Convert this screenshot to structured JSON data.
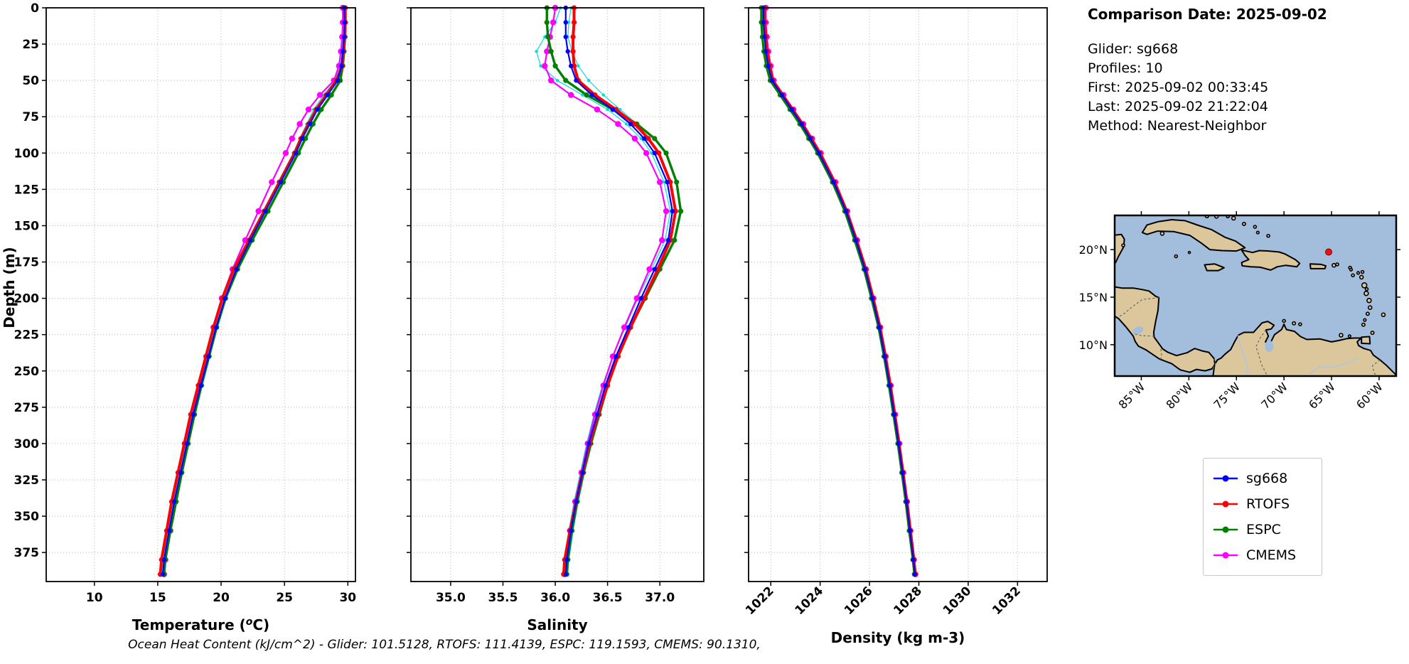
{
  "info_panel": {
    "title": "Comparison Date: 2025-09-02",
    "lines": [
      "Glider: sg668",
      "Profiles: 10",
      "First: 2025-09-02 00:33:45",
      "Last: 2025-09-02 21:22:04",
      "Method: Nearest-Neighbor"
    ]
  },
  "footer": "Ocean Heat Content (kJ/cm^2) - Glider: 101.5128,  RTOFS: 111.4139,  ESPC: 119.1593,  CMEMS: 90.1310,",
  "legend": {
    "items": [
      {
        "label": "sg668",
        "color": "#0000ff"
      },
      {
        "label": "RTOFS",
        "color": "#ff0000"
      },
      {
        "label": "ESPC",
        "color": "#008000"
      },
      {
        "label": "CMEMS",
        "color": "#ff00ff"
      }
    ]
  },
  "axis_labels": {
    "depth": "Depth (m)",
    "salinity": "Salinity",
    "density": "Density (kg m-3)"
  },
  "map": {
    "extent": {
      "lon_min": -87.8,
      "lon_max": -58.2,
      "lat_min": 6.7,
      "lat_max": 23.6
    },
    "xticks": [
      -85,
      -80,
      -75,
      -70,
      -65,
      -60
    ],
    "xtick_labels": [
      "85°W",
      "80°W",
      "75°W",
      "70°W",
      "65°W",
      "60°W"
    ],
    "yticks": [
      20,
      15,
      10
    ],
    "ytick_labels": [
      "20°N",
      "15°N",
      "10°N"
    ],
    "ocean_color": "#a3bddd",
    "land_color": "#dcc69b",
    "marker": {
      "lon": -65.3,
      "lat": 19.75,
      "color": "#ee1111"
    }
  },
  "chart_data": [
    {
      "id": "temperature",
      "type": "line",
      "xlabel": {
        "prefix": "Temperature (",
        "sup": "o",
        "suffix": "C)"
      },
      "ylabel": "Depth (m)",
      "xlim": [
        6.2,
        30.6
      ],
      "ylim": [
        0,
        395
      ],
      "xticks": [
        10,
        15,
        20,
        25,
        30
      ],
      "xtick_labels": [
        "10",
        "15",
        "20",
        "25",
        "30"
      ],
      "xtick_rotation": 0,
      "yticks": [
        0,
        25,
        50,
        75,
        100,
        125,
        150,
        175,
        200,
        225,
        250,
        275,
        300,
        325,
        350,
        375
      ],
      "ytick_labels": [
        "0",
        "25",
        "50",
        "75",
        "100",
        "125",
        "150",
        "175",
        "200",
        "225",
        "250",
        "275",
        "300",
        "325",
        "350",
        "375"
      ],
      "show_ytick_labels": true,
      "depths": [
        0,
        10,
        20,
        30,
        40,
        50,
        60,
        70,
        80,
        90,
        100,
        120,
        140,
        160,
        180,
        200,
        220,
        240,
        260,
        280,
        300,
        320,
        340,
        360,
        380,
        390
      ],
      "series": [
        {
          "name": "glider-profile-1",
          "color": "#00dede",
          "lw": 1.2,
          "ms": 2.2,
          "values": [
            29.65,
            29.7,
            29.65,
            29.55,
            29.4,
            29.0,
            28.1,
            27.3,
            26.75,
            26.2,
            25.7,
            24.5,
            23.3,
            22.1,
            21.05,
            20.15,
            19.5,
            18.9,
            18.3,
            17.7,
            17.2,
            16.7,
            16.2,
            15.8,
            15.45,
            15.35
          ]
        },
        {
          "name": "glider-profile-2",
          "color": "#00dede",
          "lw": 1.2,
          "ms": 2.2,
          "values": [
            29.75,
            29.8,
            29.75,
            29.68,
            29.55,
            29.35,
            28.65,
            27.85,
            27.2,
            26.6,
            26.05,
            24.85,
            23.65,
            22.45,
            21.35,
            20.4,
            19.7,
            19.1,
            18.5,
            17.95,
            17.45,
            16.95,
            16.5,
            16.05,
            15.6,
            15.5
          ]
        },
        {
          "name": "CMEMS",
          "color": "#ff00ff",
          "lw": 2.2,
          "ms": 4.2,
          "values": [
            29.6,
            29.6,
            29.55,
            29.45,
            29.3,
            28.9,
            27.8,
            26.9,
            26.2,
            25.6,
            25.1,
            24.0,
            22.95,
            21.9,
            20.9,
            20.05,
            19.4,
            18.85,
            18.3,
            17.8,
            17.3,
            16.85,
            16.4,
            16.0,
            15.6,
            15.5
          ]
        },
        {
          "name": "ESPC",
          "color": "#008000",
          "lw": 3.4,
          "ms": 3.6,
          "values": [
            29.75,
            29.8,
            29.78,
            29.7,
            29.6,
            29.4,
            28.7,
            27.9,
            27.25,
            26.65,
            26.1,
            24.9,
            23.7,
            22.45,
            21.3,
            20.35,
            19.65,
            19.05,
            18.45,
            17.9,
            17.4,
            16.9,
            16.45,
            16.0,
            15.6,
            15.5
          ]
        },
        {
          "name": "RTOFS",
          "color": "#ff0000",
          "lw": 4.0,
          "ms": 3.6,
          "values": [
            29.8,
            29.8,
            29.75,
            29.65,
            29.55,
            29.1,
            28.3,
            27.5,
            26.9,
            26.3,
            25.8,
            24.6,
            23.4,
            22.2,
            21.0,
            20.1,
            19.4,
            18.8,
            18.2,
            17.6,
            17.1,
            16.6,
            16.1,
            15.7,
            15.3,
            15.2
          ]
        },
        {
          "name": "sg668",
          "color": "#0000ff",
          "lw": 2.2,
          "ms": 3.2,
          "values": [
            29.7,
            29.75,
            29.7,
            29.6,
            29.5,
            29.2,
            28.4,
            27.6,
            27.0,
            26.4,
            25.9,
            24.7,
            23.5,
            22.3,
            21.2,
            20.3,
            19.6,
            19.0,
            18.4,
            17.8,
            17.3,
            16.8,
            16.3,
            15.9,
            15.5,
            15.4
          ]
        }
      ]
    },
    {
      "id": "salinity",
      "type": "line",
      "xlabel": "Salinity",
      "xlim": [
        34.62,
        37.42
      ],
      "ylim": [
        0,
        395
      ],
      "xticks": [
        35.0,
        35.5,
        36.0,
        36.5,
        37.0
      ],
      "xtick_labels": [
        "35.0",
        "35.5",
        "36.0",
        "36.5",
        "37.0"
      ],
      "xtick_rotation": 0,
      "yticks": [
        0,
        25,
        50,
        75,
        100,
        125,
        150,
        175,
        200,
        225,
        250,
        275,
        300,
        325,
        350,
        375
      ],
      "show_ytick_labels": false,
      "depths": [
        0,
        10,
        20,
        30,
        40,
        50,
        60,
        70,
        80,
        90,
        100,
        120,
        140,
        160,
        180,
        200,
        220,
        240,
        260,
        280,
        300,
        320,
        340,
        360,
        380,
        390
      ],
      "series": [
        {
          "name": "glider-profile-1",
          "color": "#00dede",
          "lw": 1.2,
          "ms": 2.2,
          "values": [
            36.05,
            36.0,
            35.9,
            35.82,
            35.86,
            36.02,
            36.26,
            36.5,
            36.68,
            36.82,
            36.92,
            37.04,
            37.1,
            37.05,
            36.92,
            36.79,
            36.67,
            36.55,
            36.45,
            36.37,
            36.3,
            36.24,
            36.18,
            36.13,
            36.09,
            36.08
          ]
        },
        {
          "name": "glider-profile-2",
          "color": "#00dede",
          "lw": 1.2,
          "ms": 2.2,
          "values": [
            36.15,
            36.13,
            36.12,
            36.16,
            36.22,
            36.32,
            36.46,
            36.62,
            36.78,
            36.9,
            37.0,
            37.1,
            37.15,
            37.11,
            36.98,
            36.85,
            36.73,
            36.61,
            36.51,
            36.43,
            36.35,
            36.28,
            36.22,
            36.17,
            36.13,
            36.12
          ]
        },
        {
          "name": "CMEMS",
          "color": "#ff00ff",
          "lw": 2.2,
          "ms": 4.2,
          "values": [
            36.0,
            35.98,
            35.95,
            35.92,
            35.9,
            35.96,
            36.15,
            36.4,
            36.6,
            36.76,
            36.87,
            37.0,
            37.06,
            37.02,
            36.9,
            36.78,
            36.66,
            36.55,
            36.46,
            36.38,
            36.31,
            36.25,
            36.19,
            36.14,
            36.1,
            36.09
          ]
        },
        {
          "name": "ESPC",
          "color": "#008000",
          "lw": 3.4,
          "ms": 3.6,
          "values": [
            35.92,
            35.92,
            35.93,
            35.96,
            36.0,
            36.1,
            36.3,
            36.55,
            36.78,
            36.95,
            37.06,
            37.16,
            37.2,
            37.14,
            37.0,
            36.86,
            36.72,
            36.6,
            36.5,
            36.42,
            36.34,
            36.27,
            36.21,
            36.16,
            36.12,
            36.11
          ]
        },
        {
          "name": "RTOFS",
          "color": "#ff0000",
          "lw": 4.0,
          "ms": 3.6,
          "values": [
            36.18,
            36.18,
            36.17,
            36.17,
            36.18,
            36.22,
            36.38,
            36.58,
            36.76,
            36.89,
            36.99,
            37.1,
            37.15,
            37.1,
            36.98,
            36.85,
            36.72,
            36.6,
            36.5,
            36.41,
            36.33,
            36.26,
            36.2,
            36.14,
            36.09,
            36.08
          ]
        },
        {
          "name": "sg668",
          "color": "#0000ff",
          "lw": 2.2,
          "ms": 3.2,
          "values": [
            36.1,
            36.1,
            36.1,
            36.12,
            36.15,
            36.2,
            36.35,
            36.55,
            36.72,
            36.85,
            36.95,
            37.07,
            37.12,
            37.08,
            36.95,
            36.82,
            36.7,
            36.58,
            36.48,
            36.4,
            36.32,
            36.26,
            36.2,
            36.15,
            36.11,
            36.1
          ]
        }
      ]
    },
    {
      "id": "density",
      "type": "line",
      "xlabel": "Density (kg m-3)",
      "xlim": [
        1021.1,
        1033.2
      ],
      "ylim": [
        0,
        395
      ],
      "xticks": [
        1022,
        1024,
        1026,
        1028,
        1030,
        1032
      ],
      "xtick_labels": [
        "1022",
        "1024",
        "1026",
        "1028",
        "1030",
        "1032"
      ],
      "xtick_rotation": -45,
      "yticks": [
        0,
        25,
        50,
        75,
        100,
        125,
        150,
        175,
        200,
        225,
        250,
        275,
        300,
        325,
        350,
        375
      ],
      "show_ytick_labels": false,
      "depths": [
        0,
        10,
        20,
        30,
        40,
        50,
        60,
        70,
        80,
        90,
        100,
        120,
        140,
        160,
        180,
        200,
        220,
        240,
        260,
        280,
        300,
        320,
        340,
        360,
        380,
        390
      ],
      "series": [
        {
          "name": "CMEMS",
          "color": "#ff00ff",
          "lw": 2.2,
          "ms": 4.2,
          "values": [
            1021.8,
            1021.8,
            1021.84,
            1021.9,
            1022.0,
            1022.12,
            1022.52,
            1022.92,
            1023.32,
            1023.68,
            1024.03,
            1024.62,
            1025.1,
            1025.5,
            1025.86,
            1026.16,
            1026.44,
            1026.66,
            1026.86,
            1027.04,
            1027.21,
            1027.37,
            1027.52,
            1027.66,
            1027.8,
            1027.86
          ]
        },
        {
          "name": "ESPC",
          "color": "#008000",
          "lw": 3.4,
          "ms": 3.6,
          "values": [
            1021.62,
            1021.62,
            1021.66,
            1021.72,
            1021.82,
            1021.98,
            1022.38,
            1022.78,
            1023.18,
            1023.54,
            1023.9,
            1024.5,
            1025.0,
            1025.4,
            1025.78,
            1026.08,
            1026.37,
            1026.59,
            1026.79,
            1026.97,
            1027.15,
            1027.31,
            1027.47,
            1027.61,
            1027.76,
            1027.82
          ]
        },
        {
          "name": "RTOFS",
          "color": "#ff0000",
          "lw": 4.0,
          "ms": 3.6,
          "values": [
            1021.75,
            1021.75,
            1021.8,
            1021.85,
            1021.95,
            1022.08,
            1022.48,
            1022.88,
            1023.28,
            1023.64,
            1023.99,
            1024.58,
            1025.08,
            1025.48,
            1025.85,
            1026.15,
            1026.43,
            1026.65,
            1026.85,
            1027.03,
            1027.2,
            1027.36,
            1027.52,
            1027.66,
            1027.8,
            1027.86
          ]
        },
        {
          "name": "sg668",
          "color": "#0000ff",
          "lw": 2.2,
          "ms": 3.2,
          "values": [
            1021.7,
            1021.7,
            1021.75,
            1021.8,
            1021.9,
            1022.05,
            1022.45,
            1022.85,
            1023.25,
            1023.6,
            1023.95,
            1024.55,
            1025.05,
            1025.45,
            1025.82,
            1026.12,
            1026.4,
            1026.62,
            1026.82,
            1027.0,
            1027.18,
            1027.34,
            1027.5,
            1027.64,
            1027.78,
            1027.84
          ]
        }
      ]
    }
  ]
}
